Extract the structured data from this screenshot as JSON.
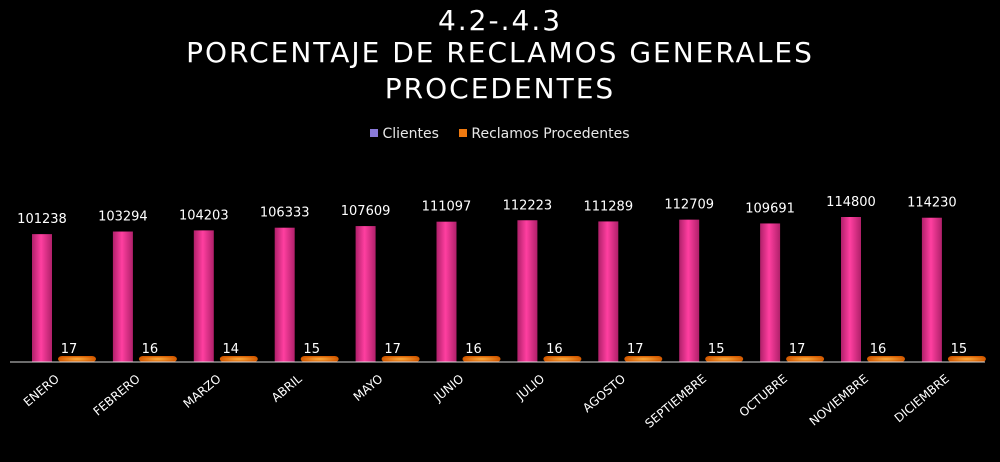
{
  "title_line1": "4.2-.4.3",
  "title_line2": "PORCENTAJE DE RECLAMOS GENERALES",
  "title_line3": "PROCEDENTES",
  "colors": {
    "clientes": "#e8308f",
    "reclamos": "#f07a10",
    "background": "#000000"
  },
  "chart_data": {
    "type": "bar",
    "categories": [
      "ENERO",
      "FEBRERO",
      "MARZO",
      "ABRIL",
      "MAYO",
      "JUNIO",
      "JULIO",
      "AGOSTO",
      "SEPTIEMBRE",
      "OCTUBRE",
      "NOVIEMBRE",
      "DICIEMBRE"
    ],
    "series": [
      {
        "name": "Clientes",
        "values": [
          101238,
          103294,
          104203,
          106333,
          107609,
          111097,
          112223,
          111289,
          112709,
          109691,
          114800,
          114230
        ]
      },
      {
        "name": "Reclamos Procedentes",
        "values": [
          17,
          16,
          14,
          15,
          17,
          16,
          16,
          17,
          15,
          17,
          16,
          15
        ]
      }
    ],
    "legend_position": "top",
    "grid": false
  }
}
